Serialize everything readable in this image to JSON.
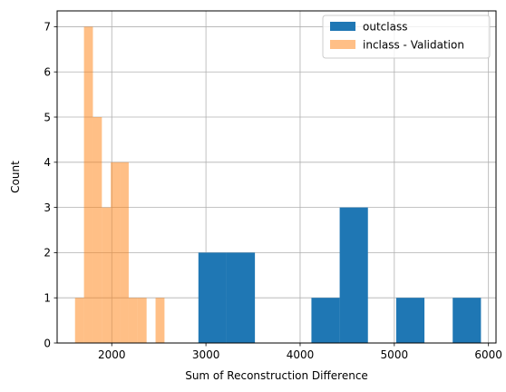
{
  "chart_data": {
    "type": "bar",
    "subtype": "histogram",
    "xlabel": "Sum of Reconstruction Difference",
    "ylabel": "Count",
    "xlim": [
      1420,
      6080
    ],
    "ylim": [
      0,
      7.35
    ],
    "xticks": [
      2000,
      3000,
      4000,
      5000,
      6000
    ],
    "yticks": [
      0,
      1,
      2,
      3,
      4,
      5,
      6,
      7
    ],
    "grid": true,
    "legend_position": "top-right",
    "series": [
      {
        "name": "outclass",
        "color": "#1f77b4",
        "opacity": 1.0,
        "bins": [
          {
            "x0": 2920,
            "x1": 3220,
            "count": 2
          },
          {
            "x0": 3220,
            "x1": 3520,
            "count": 2
          },
          {
            "x0": 4120,
            "x1": 4420,
            "count": 1
          },
          {
            "x0": 4420,
            "x1": 4720,
            "count": 3
          },
          {
            "x0": 5020,
            "x1": 5320,
            "count": 1
          },
          {
            "x0": 5620,
            "x1": 5920,
            "count": 1
          }
        ]
      },
      {
        "name": "inclass - Validation",
        "color": "#ff7f0e",
        "opacity": 0.5,
        "bins": [
          {
            "x0": 1610,
            "x1": 1705,
            "count": 1
          },
          {
            "x0": 1705,
            "x1": 1800,
            "count": 7
          },
          {
            "x0": 1800,
            "x1": 1895,
            "count": 5
          },
          {
            "x0": 1895,
            "x1": 1990,
            "count": 3
          },
          {
            "x0": 1990,
            "x1": 2085,
            "count": 4
          },
          {
            "x0": 2085,
            "x1": 2180,
            "count": 4
          },
          {
            "x0": 2180,
            "x1": 2275,
            "count": 1
          },
          {
            "x0": 2275,
            "x1": 2370,
            "count": 1
          },
          {
            "x0": 2465,
            "x1": 2560,
            "count": 1
          }
        ]
      }
    ]
  }
}
